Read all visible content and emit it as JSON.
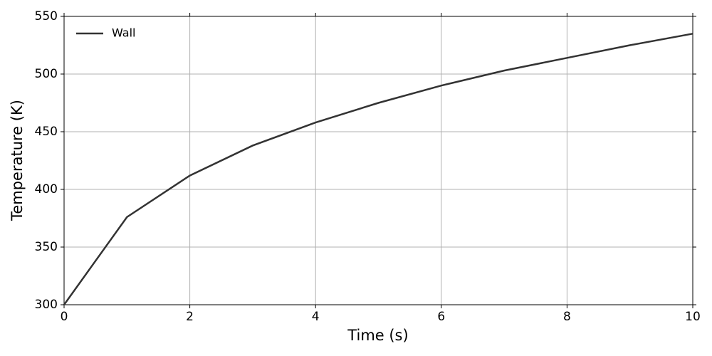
{
  "chart_data": {
    "type": "line",
    "xlabel": "Time (s)",
    "ylabel": "Temperature (K)",
    "x": [
      0,
      1,
      2,
      3,
      4,
      5,
      6,
      7,
      8,
      9,
      10
    ],
    "series": [
      {
        "name": "Wall",
        "color": "#333333",
        "values": [
          300,
          376,
          412,
          438,
          458,
          475,
          490,
          503,
          514,
          525,
          535
        ]
      }
    ],
    "xlim": [
      0,
      10
    ],
    "xticks": [
      0,
      2,
      4,
      6,
      8,
      10
    ],
    "ylim": [
      300,
      550
    ],
    "yticks": [
      300,
      350,
      400,
      450,
      500,
      550
    ],
    "grid": true,
    "legend": "upper-left"
  }
}
